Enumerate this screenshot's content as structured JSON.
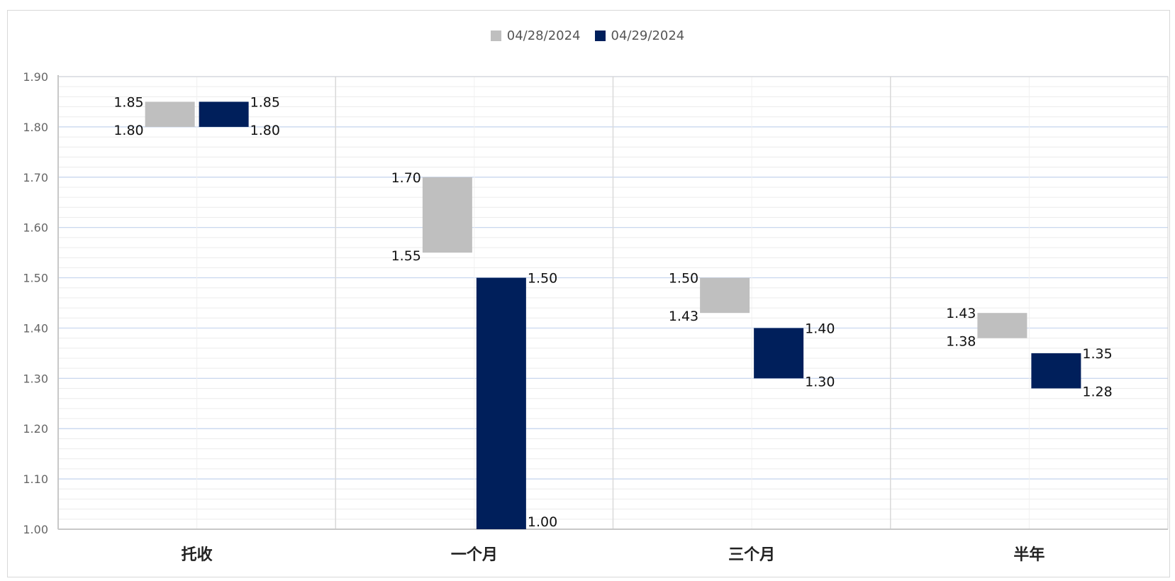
{
  "chart_data": {
    "type": "bar",
    "subtype": "floating-range",
    "categories": [
      "托收",
      "一个月",
      "三个月",
      "半年"
    ],
    "ylim": [
      1.0,
      1.9
    ],
    "yticks": [
      "1.00",
      "1.10",
      "1.20",
      "1.30",
      "1.40",
      "1.50",
      "1.60",
      "1.70",
      "1.80",
      "1.90"
    ],
    "grid": true,
    "legend_position": "top-center",
    "series": [
      {
        "name": "04/28/2024",
        "color": "#bfbfbf",
        "ranges": [
          [
            1.8,
            1.85
          ],
          [
            1.55,
            1.7
          ],
          [
            1.43,
            1.5
          ],
          [
            1.38,
            1.43
          ]
        ],
        "labels": [
          [
            "1.80",
            "1.85"
          ],
          [
            "1.55",
            "1.70"
          ],
          [
            "1.43",
            "1.50"
          ],
          [
            "1.38",
            "1.43"
          ]
        ]
      },
      {
        "name": "04/29/2024",
        "color": "#001f5b",
        "ranges": [
          [
            1.8,
            1.85
          ],
          [
            1.0,
            1.5
          ],
          [
            1.3,
            1.4
          ],
          [
            1.28,
            1.35
          ]
        ],
        "labels": [
          [
            "1.80",
            "1.85"
          ],
          [
            "1.00",
            "1.50"
          ],
          [
            "1.30",
            "1.40"
          ],
          [
            "1.28",
            "1.35"
          ]
        ]
      }
    ]
  }
}
